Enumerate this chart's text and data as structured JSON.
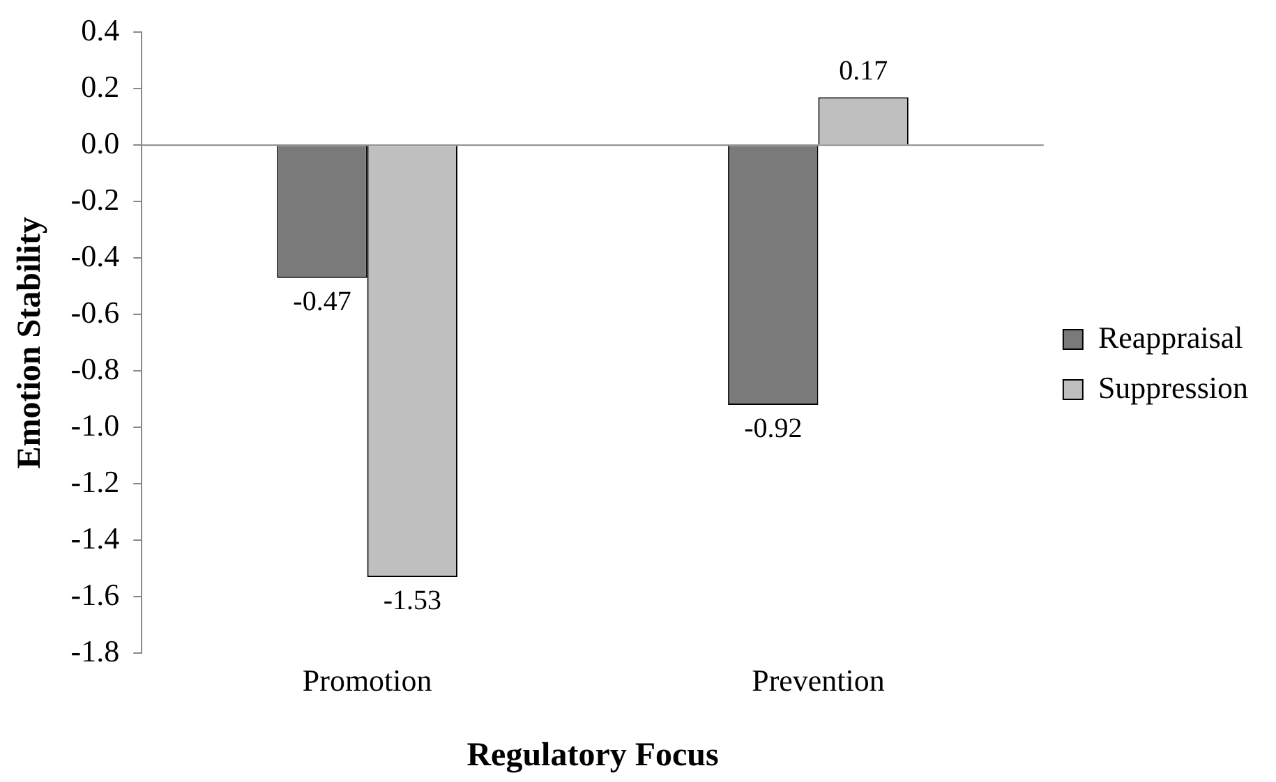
{
  "chart_data": {
    "type": "bar",
    "xlabel": "Regulatory Focus",
    "ylabel": "Emotion Stability",
    "categories": [
      "Promotion",
      "Prevention"
    ],
    "series": [
      {
        "name": "Reappraisal",
        "color": "#7a7a7a",
        "values": [
          -0.47,
          -0.92
        ]
      },
      {
        "name": "Suppression",
        "color": "#bfbfbf",
        "values": [
          -1.53,
          0.17
        ]
      }
    ],
    "ylim": [
      -1.8,
      0.4
    ],
    "yticks": [
      0.4,
      0.2,
      {
        "value": 0,
        "label": "0.0"
      },
      -0.2,
      -0.4,
      -0.6,
      -0.8,
      {
        "value": -1,
        "label": "-1.0"
      },
      -1.2,
      -1.4,
      -1.6,
      -1.8
    ],
    "ref_lines": [
      {
        "axis": "y",
        "value": 0
      }
    ],
    "data_labels": true,
    "grid": false,
    "legend": "right"
  }
}
